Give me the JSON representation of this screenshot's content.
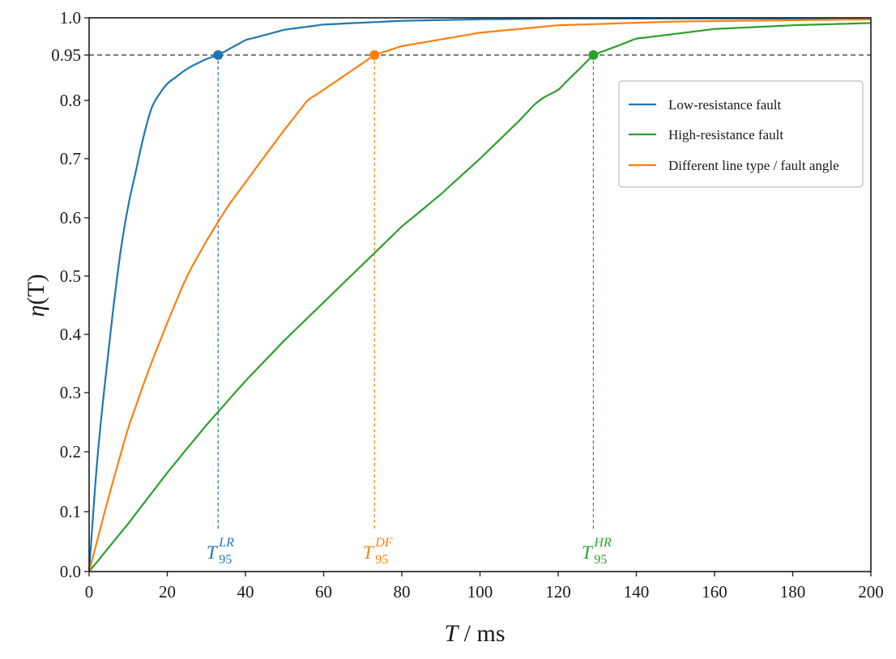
{
  "chart_data": {
    "type": "line",
    "xlabel_parts": {
      "symbol": "T",
      "unit": " / ms"
    },
    "ylabel_parts": {
      "symbol": "η",
      "arg": "(T)"
    },
    "xlim": [
      0,
      200
    ],
    "ylim_ticks": [
      "0.0",
      "0.1",
      "0.2",
      "0.3",
      "0.4",
      "0.5",
      "0.6",
      "0.7",
      "0.8",
      "0.95",
      "1.0"
    ],
    "y_tick_values": [
      0.0,
      0.1,
      0.2,
      0.3,
      0.4,
      0.5,
      0.6,
      0.7,
      0.8,
      0.95,
      1.0
    ],
    "x_ticks": [
      0,
      20,
      40,
      60,
      80,
      100,
      120,
      140,
      160,
      180,
      200
    ],
    "x_tick_labels": [
      "0",
      "20",
      "40",
      "60",
      "80",
      "100",
      "120",
      "140",
      "160",
      "180",
      "200"
    ],
    "grid": false,
    "legend_position": "top-right",
    "threshold": 0.95,
    "series": [
      {
        "name": "Low-resistance fault",
        "color": "#1f77b4",
        "t95": 33,
        "marker": {
          "base": "T",
          "sub": "95",
          "sup": "LR"
        },
        "x": [
          0,
          2,
          5,
          8,
          10,
          15,
          20,
          25,
          30,
          33,
          40,
          50,
          60,
          80,
          100,
          120,
          150,
          200
        ],
        "y": [
          0.0,
          0.18,
          0.38,
          0.54,
          0.62,
          0.77,
          0.855,
          0.905,
          0.937,
          0.95,
          0.97,
          0.984,
          0.991,
          0.996,
          0.998,
          0.999,
          0.999,
          0.999
        ]
      },
      {
        "name": "High-resistance fault",
        "color": "#2ca02c",
        "t95": 129,
        "marker": {
          "base": "T",
          "sub": "95",
          "sup": "HR"
        },
        "x": [
          0,
          5,
          10,
          20,
          30,
          40,
          50,
          60,
          70,
          80,
          90,
          100,
          110,
          120,
          129,
          140,
          160,
          180,
          200
        ],
        "y": [
          0.0,
          0.04,
          0.08,
          0.165,
          0.245,
          0.32,
          0.39,
          0.455,
          0.52,
          0.585,
          0.64,
          0.7,
          0.765,
          0.835,
          0.95,
          0.972,
          0.985,
          0.99,
          0.993
        ]
      },
      {
        "name": "Different line type / fault angle",
        "color": "#ff7f0e",
        "t95": 73,
        "marker": {
          "base": "T",
          "sub": "95",
          "sup": "DF"
        },
        "x": [
          0,
          5,
          10,
          15,
          20,
          25,
          30,
          35,
          40,
          50,
          60,
          73,
          80,
          100,
          120,
          150,
          200
        ],
        "y": [
          0.0,
          0.125,
          0.24,
          0.335,
          0.42,
          0.5,
          0.56,
          0.615,
          0.66,
          0.75,
          0.835,
          0.95,
          0.962,
          0.98,
          0.99,
          0.995,
          0.998
        ]
      }
    ]
  }
}
